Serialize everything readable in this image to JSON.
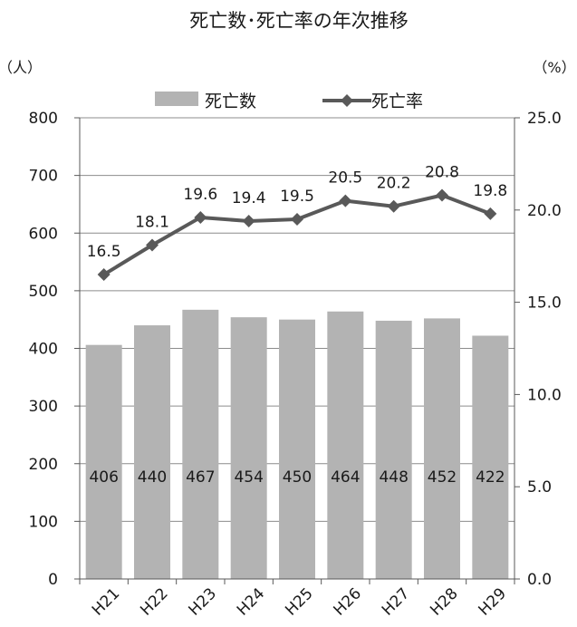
{
  "chart_data": {
    "type": "bar",
    "title": "死亡数･死亡率の年次推移",
    "categories": [
      "H21",
      "H22",
      "H23",
      "H24",
      "H25",
      "H26",
      "H27",
      "H28",
      "H29"
    ],
    "series": [
      {
        "name": "死亡数",
        "type": "bar",
        "axis": "left",
        "color": "#b3b3b3",
        "values": [
          406,
          440,
          467,
          454,
          450,
          464,
          448,
          452,
          422
        ]
      },
      {
        "name": "死亡率",
        "type": "line",
        "marker": "diamond",
        "axis": "right",
        "color": "#595959",
        "values": [
          16.5,
          18.1,
          19.6,
          19.4,
          19.5,
          20.5,
          20.2,
          20.8,
          19.8
        ]
      }
    ],
    "y_left": {
      "unit_label": "（人）",
      "range": [
        0,
        800
      ],
      "ticks": [
        "0",
        "100",
        "200",
        "300",
        "400",
        "500",
        "600",
        "700",
        "800"
      ]
    },
    "y_right": {
      "unit_label": "（%）",
      "range": [
        0,
        25
      ],
      "ticks": [
        "0.0",
        "5.0",
        "10.0",
        "15.0",
        "20.0",
        "25.0"
      ]
    },
    "grid": true,
    "legend_position": "top",
    "bar_labels": [
      "406",
      "440",
      "467",
      "454",
      "450",
      "464",
      "448",
      "452",
      "422"
    ],
    "line_labels": [
      "16.5",
      "18.1",
      "19.6",
      "19.4",
      "19.5",
      "20.5",
      "20.2",
      "20.8",
      "19.8"
    ]
  }
}
